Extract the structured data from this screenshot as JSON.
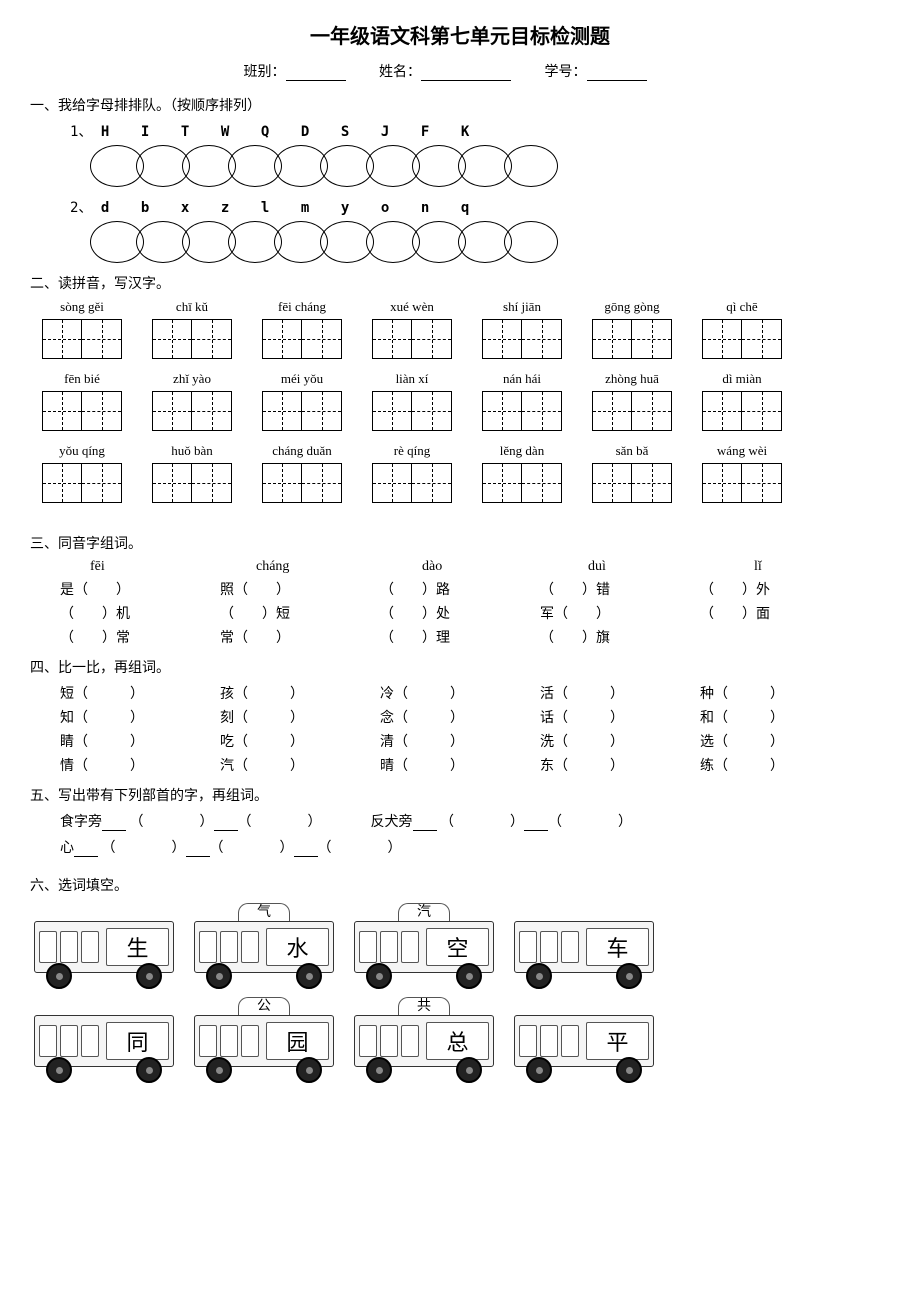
{
  "title": "一年级语文科第七单元目标检测题",
  "header": {
    "class_label": "班别：",
    "name_label": "姓名：",
    "id_label": "学号："
  },
  "q1": {
    "heading": "一、我给字母排排队。（按顺序排列）",
    "row1_label": "1、",
    "row1_letters": [
      "H",
      "I",
      "T",
      "W",
      "Q",
      "D",
      "S",
      "J",
      "F",
      "K"
    ],
    "row2_label": "2、",
    "row2_letters": [
      "d",
      "b",
      "x",
      "z",
      "l",
      "m",
      "y",
      "o",
      "n",
      "q"
    ]
  },
  "q2": {
    "heading": "二、读拼音，写汉字。",
    "rows": [
      [
        "sòng gěi",
        "chī kǔ",
        "fēi cháng",
        "xué wèn",
        "shí jiān",
        "gōng gòng",
        "qì chē"
      ],
      [
        "fēn bié",
        "zhǐ yào",
        "méi yǒu",
        "liàn xí",
        "nán hái",
        "zhòng huā",
        "dì miàn"
      ],
      [
        "yǒu qíng",
        "huǒ bàn",
        "cháng duǎn",
        "rè qíng",
        "lěng dàn",
        "sǎn bǎ",
        "wáng wèi"
      ]
    ]
  },
  "q3": {
    "heading": "三、同音字组词。",
    "headers": [
      "fēi",
      "cháng",
      "dào",
      "duì",
      "lǐ"
    ],
    "rows": [
      [
        "是（　　）",
        "照（　　）",
        "（　　）路",
        "（　　）错",
        "（　　）外"
      ],
      [
        "（　　）机",
        "（　　）短",
        "（　　）处",
        "军（　　）",
        "（　　）面"
      ],
      [
        "（　　）常",
        "常（　　）",
        "（　　）理",
        "（　　）旗",
        ""
      ]
    ]
  },
  "q4": {
    "heading": "四、比一比，再组词。",
    "rows": [
      [
        "短（　　　）",
        "孩（　　　）",
        "冷（　　　）",
        "活（　　　）",
        "种（　　　）"
      ],
      [
        "知（　　　）",
        "刻（　　　）",
        "念（　　　）",
        "话（　　　）",
        "和（　　　）"
      ],
      [
        "睛（　　　）",
        "吃（　　　）",
        "清（　　　）",
        "洗（　　　）",
        "选（　　　）"
      ],
      [
        "情（　　　）",
        "汽（　　　）",
        "晴（　　　）",
        "东（　　　）",
        "练（　　　）"
      ]
    ]
  },
  "q5": {
    "heading": "五、写出带有下列部首的字，再组词。",
    "line1_a": "食字旁",
    "line1_b": "反犬旁",
    "line2_a": "心"
  },
  "q6": {
    "heading": "六、选词填空。",
    "row1": {
      "tab1": "气",
      "tab2": "汽",
      "chars": [
        "生",
        "水",
        "空",
        "车"
      ]
    },
    "row2": {
      "tab1": "公",
      "tab2": "共",
      "chars": [
        "同",
        "园",
        "总",
        "平"
      ]
    }
  }
}
